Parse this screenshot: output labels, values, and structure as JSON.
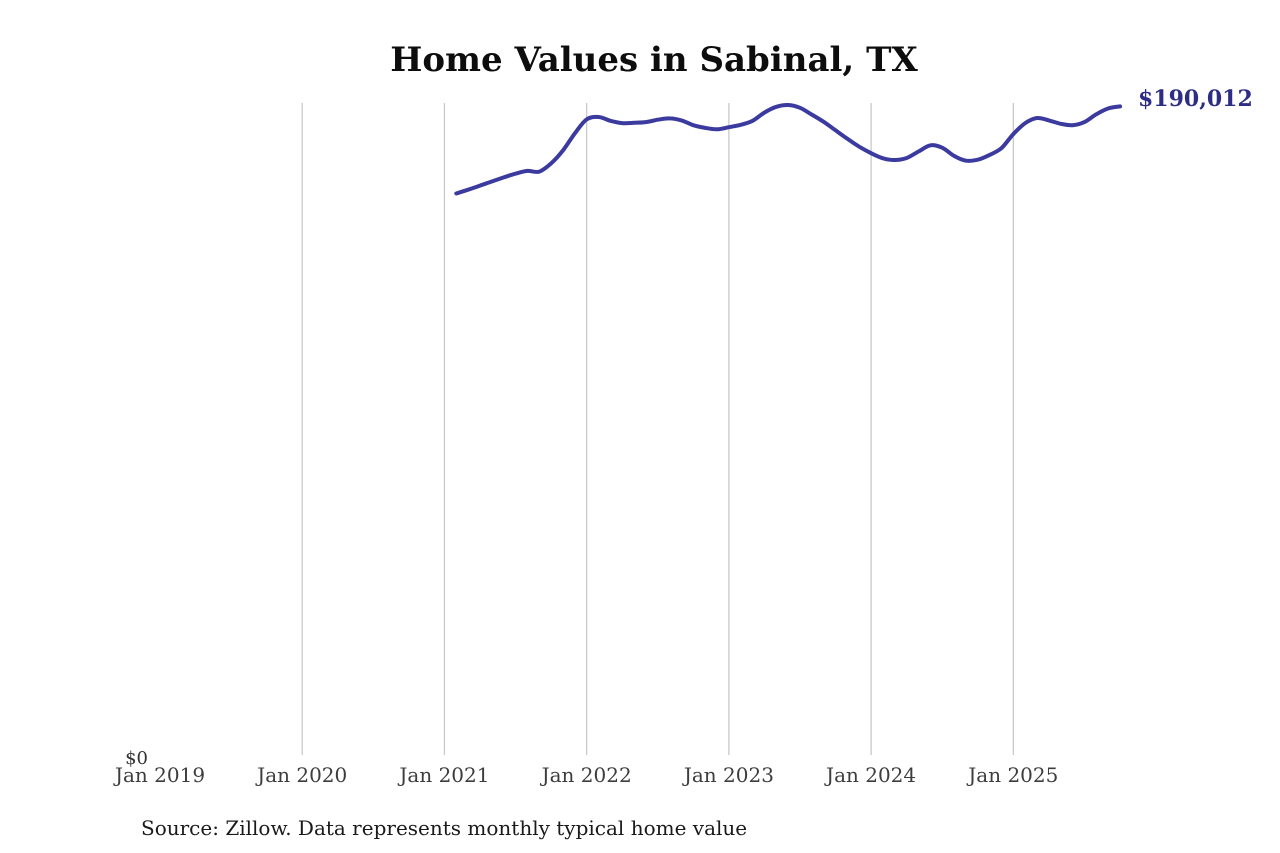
{
  "chart_data": {
    "type": "line",
    "title": "Home Values in Sabinal, TX",
    "source": "Source: Zillow. Data represents monthly typical home value",
    "line_color": "#3b3a9e",
    "gridline_color": "#c9c9c9",
    "end_label": {
      "text": "$190,012",
      "color": "#2e2d85"
    },
    "y_axis": {
      "zero_label": "$0",
      "ylim": [
        0,
        191000
      ],
      "gridlines": false
    },
    "x_axis": {
      "ticks": [
        {
          "label": "Jan 2019",
          "gridline": false
        },
        {
          "label": "Jan 2020",
          "gridline": true
        },
        {
          "label": "Jan 2021",
          "gridline": true
        },
        {
          "label": "Jan 2022",
          "gridline": true
        },
        {
          "label": "Jan 2023",
          "gridline": true
        },
        {
          "label": "Jan 2024",
          "gridline": true
        },
        {
          "label": "Jan 2025",
          "gridline": true
        }
      ],
      "months_per_tick": 12
    },
    "points": [
      [
        "2021-02",
        164500
      ],
      [
        "2021-03",
        165600
      ],
      [
        "2021-04",
        166800
      ],
      [
        "2021-05",
        168000
      ],
      [
        "2021-06",
        169200
      ],
      [
        "2021-07",
        170300
      ],
      [
        "2021-08",
        171100
      ],
      [
        "2021-09",
        170900
      ],
      [
        "2021-10",
        173300
      ],
      [
        "2021-11",
        177100
      ],
      [
        "2021-12",
        182100
      ],
      [
        "2022-01",
        186200
      ],
      [
        "2022-02",
        186900
      ],
      [
        "2022-03",
        185800
      ],
      [
        "2022-04",
        185100
      ],
      [
        "2022-05",
        185200
      ],
      [
        "2022-06",
        185400
      ],
      [
        "2022-07",
        186100
      ],
      [
        "2022-08",
        186500
      ],
      [
        "2022-09",
        185900
      ],
      [
        "2022-10",
        184500
      ],
      [
        "2022-11",
        183700
      ],
      [
        "2022-12",
        183300
      ],
      [
        "2023-01",
        183900
      ],
      [
        "2023-02",
        184600
      ],
      [
        "2023-03",
        185800
      ],
      [
        "2023-04",
        188200
      ],
      [
        "2023-05",
        189900
      ],
      [
        "2023-06",
        190400
      ],
      [
        "2023-07",
        189600
      ],
      [
        "2023-08",
        187600
      ],
      [
        "2023-09",
        185500
      ],
      [
        "2023-10",
        183000
      ],
      [
        "2023-11",
        180500
      ],
      [
        "2023-12",
        178200
      ],
      [
        "2024-01",
        176300
      ],
      [
        "2024-02",
        174800
      ],
      [
        "2024-03",
        174300
      ],
      [
        "2024-04",
        174900
      ],
      [
        "2024-05",
        176800
      ],
      [
        "2024-06",
        178600
      ],
      [
        "2024-07",
        177900
      ],
      [
        "2024-08",
        175500
      ],
      [
        "2024-09",
        174100
      ],
      [
        "2024-10",
        174400
      ],
      [
        "2024-11",
        175800
      ],
      [
        "2024-12",
        177800
      ],
      [
        "2025-01",
        181900
      ],
      [
        "2025-02",
        185100
      ],
      [
        "2025-03",
        186600
      ],
      [
        "2025-04",
        185900
      ],
      [
        "2025-05",
        184900
      ],
      [
        "2025-06",
        184500
      ],
      [
        "2025-07",
        185400
      ],
      [
        "2025-08",
        187700
      ],
      [
        "2025-09",
        189400
      ],
      [
        "2025-10",
        190012
      ]
    ]
  }
}
